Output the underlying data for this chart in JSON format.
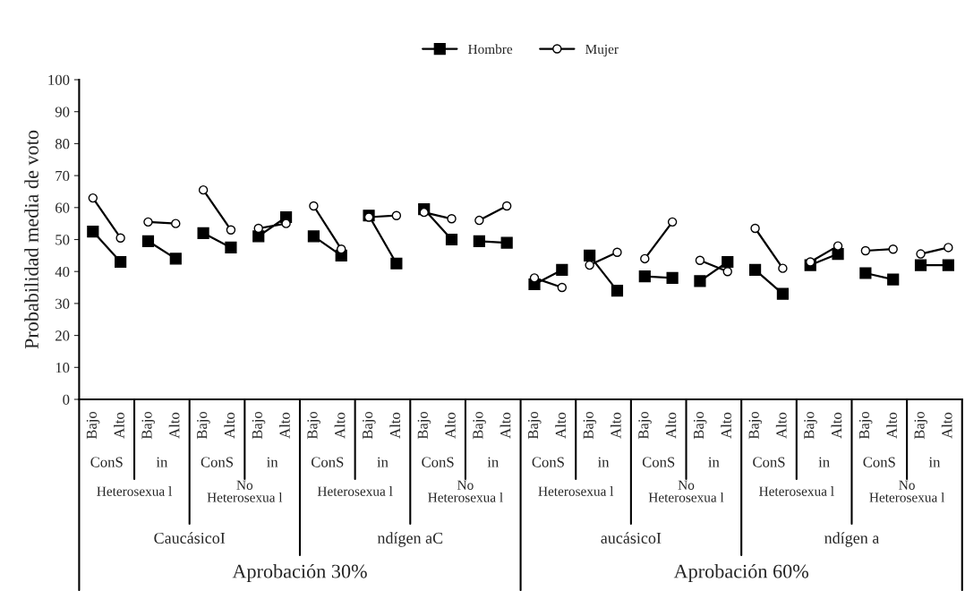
{
  "chart_data": {
    "type": "line",
    "ylabel": "Probabilidad media de voto",
    "categories": [
      "Bajo",
      "Alto",
      "Bajo",
      "Alto",
      "Bajo",
      "Alto",
      "Bajo",
      "Alto",
      "Bajo",
      "Alto",
      "Bajo",
      "Alto",
      "Bajo",
      "Alto",
      "Bajo",
      "Alto",
      "Bajo",
      "Alto",
      "Bajo",
      "Alto",
      "Bajo",
      "Alto",
      "Bajo",
      "Alto",
      "Bajo",
      "Alto",
      "Bajo",
      "Alto",
      "Bajo",
      "Alto",
      "Bajo",
      "Alto"
    ],
    "series": [
      {
        "name": "Hombre",
        "color": "#000000",
        "marker": "square",
        "values": [
          52.5,
          43,
          49.5,
          44,
          52,
          47.5,
          51,
          57,
          51,
          45,
          57.5,
          42.5,
          59.5,
          50,
          49.5,
          49,
          36,
          40.5,
          45,
          34,
          38.5,
          38,
          37,
          43,
          40.5,
          33,
          42,
          45.5,
          39.5,
          37.5,
          42,
          42
        ]
      },
      {
        "name": "Mujer",
        "color": "#000000",
        "marker": "circle",
        "values": [
          63,
          50.5,
          55.5,
          55,
          65.5,
          53,
          53.5,
          55,
          60.5,
          47,
          57,
          57.5,
          58.5,
          56.5,
          56,
          60.5,
          38,
          35,
          42,
          46,
          44,
          55.5,
          43.5,
          40,
          53.5,
          41,
          43,
          48,
          46.5,
          47,
          45.5,
          47.5
        ]
      }
    ],
    "annotations": [
      "ConS",
      "in",
      "ConS",
      "in",
      "ConS",
      "in",
      "ConS",
      "in",
      "ConS",
      "in",
      "ConS",
      "in",
      "ConS",
      "in",
      "ConS",
      "in",
      "Heterosexua l",
      "No\nHeterosexua l",
      "Heterosexua l",
      "No\nHeterosexua l",
      "Heterosexua l",
      "No\nHeterosexua l",
      "Heterosexua l",
      "No\nHeterosexua l",
      "CaucásicoI",
      "ndígen aC",
      "aucásicoI",
      "ndígen a",
      "Aprobación 30%",
      "Aprobación 60%"
    ],
    "ylim": [
      0,
      100
    ],
    "yticks": [
      0,
      10,
      20,
      30,
      40,
      50,
      60,
      70,
      80,
      90,
      100
    ],
    "legend": "top",
    "grid": false
  }
}
